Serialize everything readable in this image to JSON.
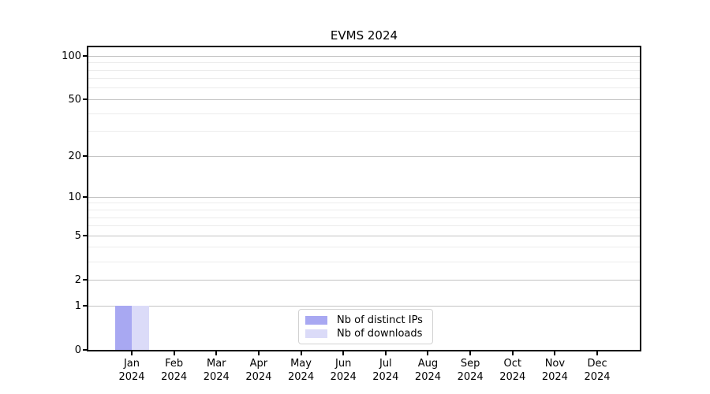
{
  "chart_data": {
    "type": "bar",
    "title": "EVMS 2024",
    "xlabel": "",
    "ylabel": "",
    "categories": [
      [
        "Jan",
        "2024"
      ],
      [
        "Feb",
        "2024"
      ],
      [
        "Mar",
        "2024"
      ],
      [
        "Apr",
        "2024"
      ],
      [
        "May",
        "2024"
      ],
      [
        "Jun",
        "2024"
      ],
      [
        "Jul",
        "2024"
      ],
      [
        "Aug",
        "2024"
      ],
      [
        "Sep",
        "2024"
      ],
      [
        "Oct",
        "2024"
      ],
      [
        "Nov",
        "2024"
      ],
      [
        "Dec",
        "2024"
      ]
    ],
    "series": [
      {
        "name": "Nb of distinct IPs",
        "color": "#a8a8f2",
        "values": [
          1,
          0,
          0,
          0,
          0,
          0,
          0,
          0,
          0,
          0,
          0,
          0
        ]
      },
      {
        "name": "Nb of downloads",
        "color": "#dbdbf8",
        "values": [
          1,
          0,
          0,
          0,
          0,
          0,
          0,
          0,
          0,
          0,
          0,
          0
        ]
      }
    ],
    "yscale": "log1p",
    "ylim": [
      0,
      115
    ],
    "yticks": [
      0,
      1,
      2,
      5,
      10,
      20,
      50,
      100
    ],
    "yticks_minor": [
      3,
      4,
      6,
      7,
      8,
      9,
      30,
      40,
      60,
      70,
      80,
      90
    ],
    "grid": true,
    "legend_position": "lower center"
  }
}
